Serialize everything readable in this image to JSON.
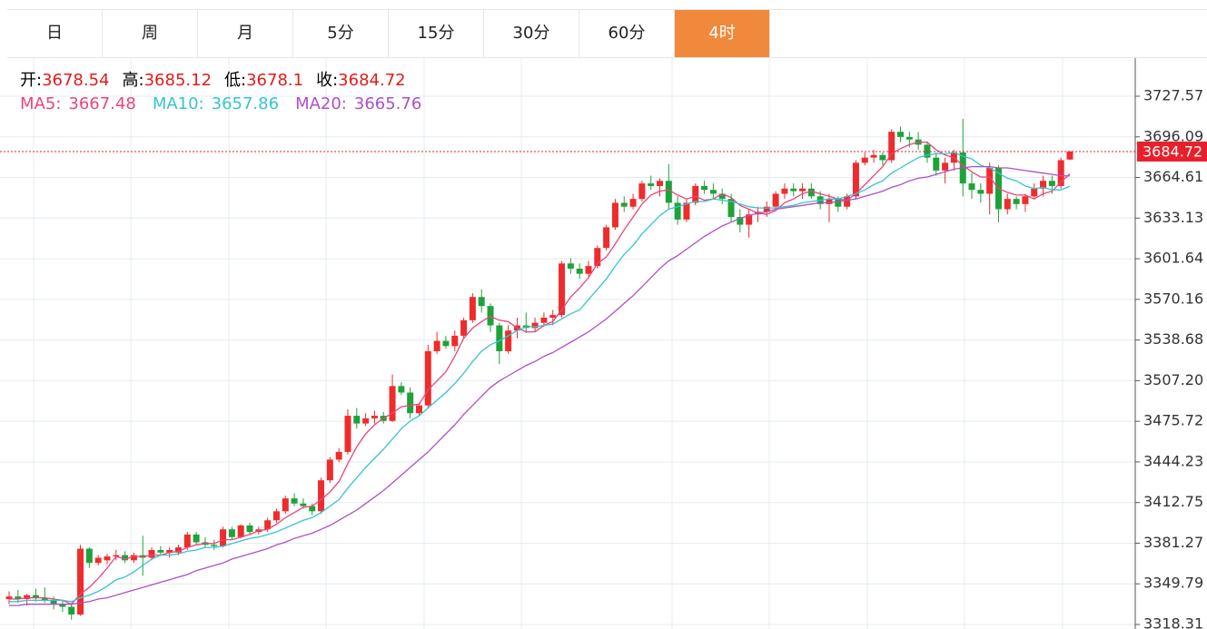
{
  "tabs": [
    {
      "label": "日",
      "selected": false
    },
    {
      "label": "周",
      "selected": false
    },
    {
      "label": "月",
      "selected": false
    },
    {
      "label": "5分",
      "selected": false
    },
    {
      "label": "15分",
      "selected": false
    },
    {
      "label": "30分",
      "selected": false
    },
    {
      "label": "60分",
      "selected": false
    },
    {
      "label": "4时",
      "selected": true
    }
  ],
  "chart_data": {
    "type": "candlestick",
    "ohlc_labels": [
      "开:",
      "高:",
      "低:",
      "收:"
    ],
    "up_color": "#ee2c2c",
    "down_color": "#1ea23a",
    "candles": [
      [
        3338,
        3344,
        3334,
        3340
      ],
      [
        3340,
        3345,
        3335,
        3338
      ],
      [
        3338,
        3342,
        3333,
        3341
      ],
      [
        3341,
        3346,
        3336,
        3339
      ],
      [
        3339,
        3347,
        3335,
        3337
      ],
      [
        3337,
        3340,
        3330,
        3334
      ],
      [
        3334,
        3337,
        3328,
        3332
      ],
      [
        3332,
        3335,
        3322,
        3326
      ],
      [
        3326,
        3380,
        3325,
        3377
      ],
      [
        3377,
        3378,
        3362,
        3366
      ],
      [
        3366,
        3372,
        3364,
        3370
      ],
      [
        3368,
        3373,
        3365,
        3371
      ],
      [
        3371,
        3376,
        3368,
        3372
      ],
      [
        3372,
        3375,
        3366,
        3368
      ],
      [
        3368,
        3374,
        3366,
        3372
      ],
      [
        3372,
        3387,
        3356,
        3370
      ],
      [
        3370,
        3378,
        3368,
        3376
      ],
      [
        3376,
        3379,
        3372,
        3374
      ],
      [
        3374,
        3378,
        3370,
        3376
      ],
      [
        3374,
        3380,
        3372,
        3378
      ],
      [
        3378,
        3390,
        3376,
        3388
      ],
      [
        3388,
        3390,
        3380,
        3382
      ],
      [
        3382,
        3386,
        3378,
        3380
      ],
      [
        3380,
        3384,
        3376,
        3379
      ],
      [
        3379,
        3394,
        3378,
        3392
      ],
      [
        3392,
        3394,
        3384,
        3386
      ],
      [
        3386,
        3396,
        3385,
        3395
      ],
      [
        3395,
        3397,
        3388,
        3390
      ],
      [
        3390,
        3394,
        3388,
        3392
      ],
      [
        3392,
        3401,
        3390,
        3399
      ],
      [
        3399,
        3408,
        3397,
        3406
      ],
      [
        3406,
        3418,
        3404,
        3416
      ],
      [
        3416,
        3420,
        3410,
        3412
      ],
      [
        3412,
        3416,
        3408,
        3410
      ],
      [
        3410,
        3412,
        3403,
        3406
      ],
      [
        3406,
        3432,
        3404,
        3430
      ],
      [
        3430,
        3448,
        3428,
        3446
      ],
      [
        3446,
        3455,
        3444,
        3452
      ],
      [
        3452,
        3485,
        3450,
        3480
      ],
      [
        3480,
        3486,
        3470,
        3474
      ],
      [
        3474,
        3482,
        3472,
        3478
      ],
      [
        3478,
        3484,
        3474,
        3480
      ],
      [
        3480,
        3483,
        3474,
        3476
      ],
      [
        3476,
        3512,
        3475,
        3503
      ],
      [
        3503,
        3506,
        3496,
        3498
      ],
      [
        3498,
        3502,
        3478,
        3482
      ],
      [
        3482,
        3490,
        3480,
        3488
      ],
      [
        3488,
        3535,
        3486,
        3530
      ],
      [
        3530,
        3545,
        3528,
        3538
      ],
      [
        3538,
        3542,
        3532,
        3534
      ],
      [
        3534,
        3546,
        3530,
        3542
      ],
      [
        3542,
        3556,
        3540,
        3554
      ],
      [
        3554,
        3575,
        3552,
        3572
      ],
      [
        3572,
        3578,
        3560,
        3565
      ],
      [
        3565,
        3567,
        3545,
        3550
      ],
      [
        3550,
        3552,
        3520,
        3530
      ],
      [
        3530,
        3550,
        3528,
        3546
      ],
      [
        3546,
        3556,
        3540,
        3550
      ],
      [
        3550,
        3560,
        3544,
        3548
      ],
      [
        3548,
        3556,
        3545,
        3552
      ],
      [
        3552,
        3560,
        3549,
        3556
      ],
      [
        3556,
        3562,
        3550,
        3558
      ],
      [
        3558,
        3600,
        3556,
        3598
      ],
      [
        3598,
        3602,
        3590,
        3594
      ],
      [
        3594,
        3598,
        3586,
        3590
      ],
      [
        3590,
        3600,
        3588,
        3596
      ],
      [
        3596,
        3612,
        3594,
        3610
      ],
      [
        3610,
        3628,
        3608,
        3626
      ],
      [
        3626,
        3648,
        3624,
        3645
      ],
      [
        3645,
        3650,
        3638,
        3642
      ],
      [
        3642,
        3652,
        3640,
        3648
      ],
      [
        3648,
        3662,
        3646,
        3660
      ],
      [
        3660,
        3666,
        3655,
        3658
      ],
      [
        3658,
        3664,
        3650,
        3662
      ],
      [
        3662,
        3675,
        3640,
        3645
      ],
      [
        3645,
        3650,
        3628,
        3632
      ],
      [
        3632,
        3648,
        3630,
        3645
      ],
      [
        3645,
        3660,
        3643,
        3658
      ],
      [
        3658,
        3662,
        3652,
        3655
      ],
      [
        3655,
        3660,
        3648,
        3652
      ],
      [
        3652,
        3656,
        3644,
        3648
      ],
      [
        3648,
        3652,
        3630,
        3634
      ],
      [
        3634,
        3640,
        3622,
        3628
      ],
      [
        3628,
        3640,
        3618,
        3636
      ],
      [
        3636,
        3642,
        3630,
        3638
      ],
      [
        3638,
        3646,
        3634,
        3642
      ],
      [
        3642,
        3654,
        3640,
        3652
      ],
      [
        3652,
        3660,
        3648,
        3656
      ],
      [
        3656,
        3660,
        3650,
        3654
      ],
      [
        3654,
        3660,
        3648,
        3656
      ],
      [
        3656,
        3660,
        3648,
        3650
      ],
      [
        3650,
        3654,
        3640,
        3644
      ],
      [
        3644,
        3652,
        3630,
        3648
      ],
      [
        3648,
        3650,
        3638,
        3642
      ],
      [
        3642,
        3652,
        3640,
        3650
      ],
      [
        3650,
        3678,
        3648,
        3676
      ],
      [
        3676,
        3684,
        3674,
        3680
      ],
      [
        3680,
        3686,
        3676,
        3682
      ],
      [
        3682,
        3684,
        3674,
        3678
      ],
      [
        3678,
        3702,
        3676,
        3700
      ],
      [
        3700,
        3704,
        3692,
        3696
      ],
      [
        3696,
        3700,
        3688,
        3694
      ],
      [
        3694,
        3700,
        3686,
        3690
      ],
      [
        3690,
        3692,
        3676,
        3680
      ],
      [
        3680,
        3684,
        3666,
        3670
      ],
      [
        3670,
        3680,
        3660,
        3676
      ],
      [
        3676,
        3686,
        3670,
        3684
      ],
      [
        3684,
        3710,
        3650,
        3660
      ],
      [
        3660,
        3668,
        3648,
        3655
      ],
      [
        3655,
        3660,
        3645,
        3652
      ],
      [
        3652,
        3676,
        3636,
        3672
      ],
      [
        3672,
        3674,
        3630,
        3640
      ],
      [
        3640,
        3652,
        3636,
        3648
      ],
      [
        3648,
        3650,
        3640,
        3644
      ],
      [
        3644,
        3652,
        3638,
        3650
      ],
      [
        3650,
        3660,
        3648,
        3656
      ],
      [
        3656,
        3666,
        3650,
        3662
      ],
      [
        3662,
        3666,
        3652,
        3658
      ],
      [
        3658,
        3680,
        3656,
        3678
      ],
      [
        3678.54,
        3685.12,
        3678.1,
        3684.72
      ]
    ],
    "series": [
      {
        "name": "MA5:",
        "color": "#e8457c",
        "values": [
          3338,
          3338,
          3339,
          3339,
          3339,
          3338,
          3337,
          3334,
          3342,
          3347,
          3354,
          3362,
          3371,
          3369,
          3371,
          3371,
          3372,
          3372,
          3374,
          3375,
          3378,
          3380,
          3381,
          3381,
          3384,
          3384,
          3386,
          3388,
          3391,
          3392,
          3396,
          3401,
          3405,
          3409,
          3410,
          3415,
          3421,
          3429,
          3443,
          3456,
          3466,
          3473,
          3478,
          3482,
          3487,
          3488,
          3489,
          3500,
          3507,
          3514,
          3526,
          3540,
          3548,
          3553,
          3557,
          3554,
          3553,
          3548,
          3545,
          3545,
          3550,
          3553,
          3562,
          3572,
          3579,
          3587,
          3598,
          3603,
          3613,
          3624,
          3634,
          3644,
          3651,
          3654,
          3655,
          3651,
          3648,
          3650,
          3647,
          3648,
          3652,
          3649,
          3643,
          3640,
          3637,
          3636,
          3639,
          3645,
          3648,
          3652,
          3654,
          3652,
          3650,
          3648,
          3647,
          3652,
          3659,
          3666,
          3673,
          3683,
          3687,
          3690,
          3692,
          3692,
          3686,
          3682,
          3680,
          3674,
          3669,
          3665,
          3665,
          3656,
          3653,
          3651,
          3651,
          3648,
          3652,
          3654,
          3661,
          3667.48
        ]
      },
      {
        "name": "MA10:",
        "color": "#36c4d0",
        "values": [
          3336,
          3336,
          3337,
          3337,
          3337,
          3337,
          3337,
          3336,
          3339,
          3341,
          3344,
          3348,
          3353,
          3355,
          3359,
          3364,
          3369,
          3372,
          3372,
          3373,
          3375,
          3376,
          3378,
          3378,
          3379,
          3381,
          3383,
          3385,
          3386,
          3388,
          3390,
          3393,
          3396,
          3399,
          3401,
          3405,
          3410,
          3415,
          3424,
          3432,
          3440,
          3447,
          3454,
          3462,
          3470,
          3476,
          3480,
          3486,
          3492,
          3498,
          3505,
          3513,
          3522,
          3530,
          3535,
          3538,
          3542,
          3546,
          3549,
          3549,
          3550,
          3551,
          3555,
          3559,
          3562,
          3570,
          3578,
          3586,
          3596,
          3605,
          3612,
          3621,
          3628,
          3635,
          3640,
          3642,
          3644,
          3646,
          3646,
          3648,
          3647,
          3646,
          3644,
          3642,
          3641,
          3641,
          3641,
          3642,
          3643,
          3645,
          3646,
          3647,
          3648,
          3648,
          3650,
          3652,
          3655,
          3659,
          3662,
          3668,
          3672,
          3676,
          3680,
          3682,
          3683,
          3683,
          3684,
          3681,
          3679,
          3674,
          3672,
          3668,
          3664,
          3662,
          3658,
          3656,
          3657,
          3655,
          3655,
          3657.86
        ]
      },
      {
        "name": "MA20:",
        "color": "#b04fc6",
        "values": [
          3333,
          3333,
          3334,
          3334,
          3334,
          3334,
          3334,
          3334,
          3335,
          3336,
          3338,
          3339,
          3341,
          3343,
          3345,
          3347,
          3349,
          3351,
          3353,
          3355,
          3357,
          3360,
          3362,
          3364,
          3366,
          3369,
          3371,
          3373,
          3375,
          3377,
          3380,
          3382,
          3385,
          3387,
          3389,
          3392,
          3395,
          3399,
          3403,
          3407,
          3412,
          3417,
          3422,
          3428,
          3434,
          3440,
          3446,
          3452,
          3459,
          3466,
          3473,
          3481,
          3488,
          3495,
          3502,
          3507,
          3511,
          3515,
          3519,
          3522,
          3526,
          3529,
          3533,
          3537,
          3541,
          3545,
          3550,
          3555,
          3561,
          3567,
          3573,
          3580,
          3587,
          3594,
          3600,
          3604,
          3609,
          3614,
          3619,
          3623,
          3627,
          3630,
          3633,
          3635,
          3637,
          3638,
          3640,
          3641,
          3642,
          3643,
          3644,
          3645,
          3645,
          3646,
          3647,
          3648,
          3650,
          3652,
          3654,
          3657,
          3659,
          3662,
          3664,
          3665,
          3667,
          3669,
          3671,
          3672,
          3673,
          3673,
          3673,
          3672,
          3672,
          3671,
          3670,
          3669,
          3668,
          3667,
          3666,
          3665.76
        ]
      }
    ],
    "ylim": [
      3314.79,
      3757.81
    ],
    "yticks": [
      3318.31,
      3349.79,
      3381.27,
      3412.75,
      3444.23,
      3475.72,
      {
        "value": 3507.2,
        "label": "3507.20"
      },
      3538.68,
      3570.16,
      3601.64,
      3633.13,
      3664.61,
      3696.09,
      3727.57
    ],
    "grid": true
  }
}
